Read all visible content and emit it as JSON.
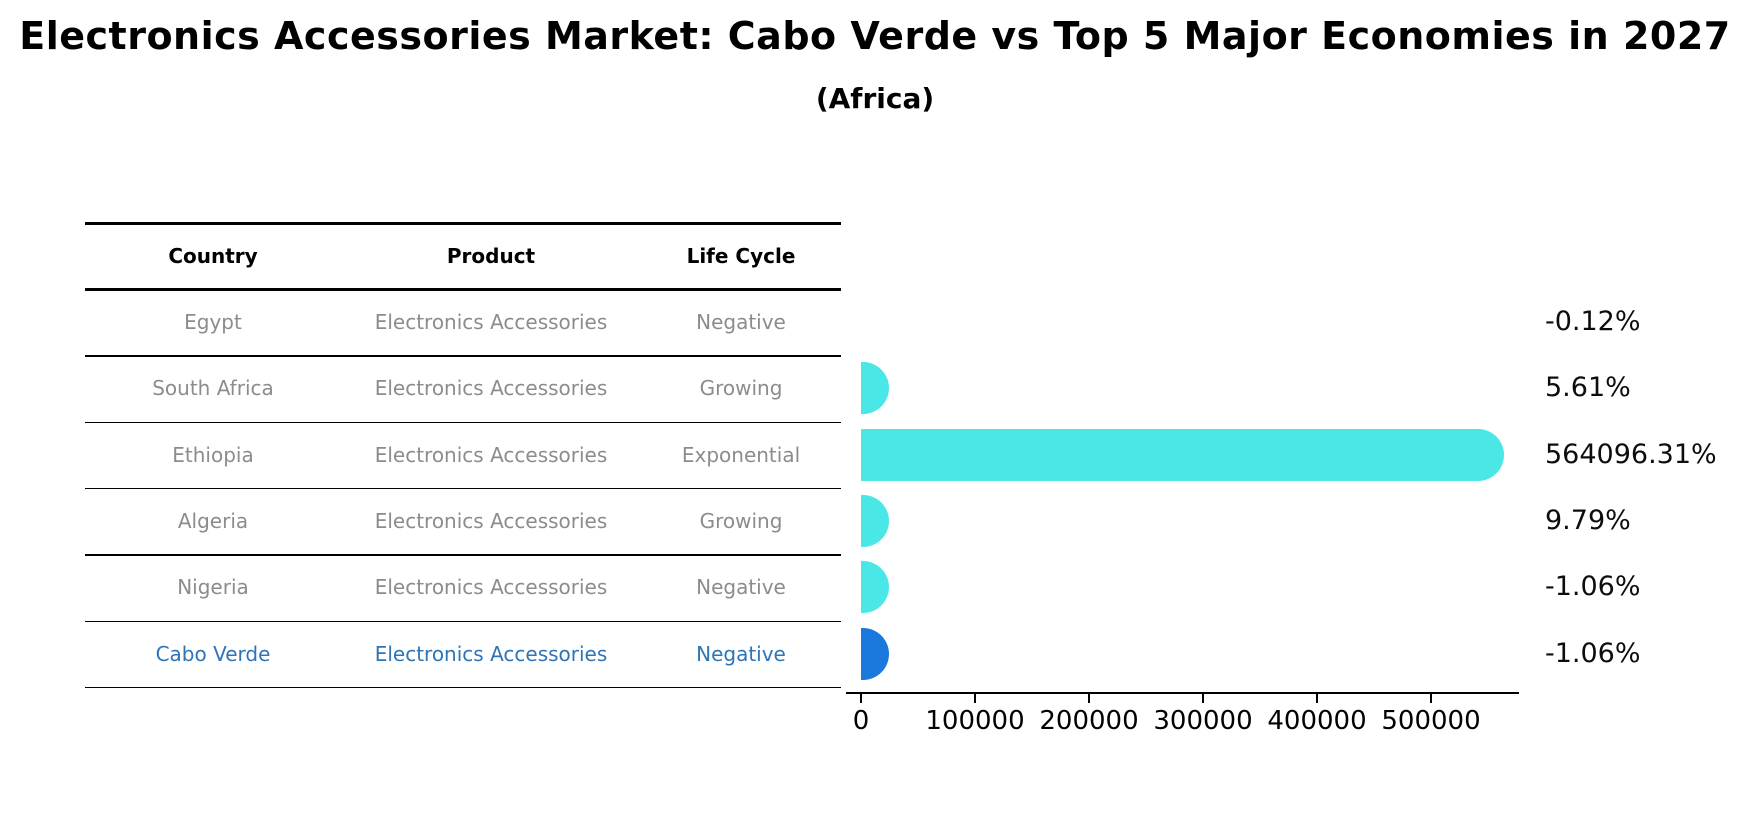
{
  "title": "Electronics Accessories Market: Cabo Verde vs Top 5 Major Economies in 2027",
  "subtitle": "(Africa)",
  "table": {
    "headers": [
      "Country",
      "Product",
      "Life Cycle"
    ],
    "rows": [
      {
        "country": "Egypt",
        "product": "Electronics Accessories",
        "life_cycle": "Negative",
        "highlighted": false
      },
      {
        "country": "South Africa",
        "product": "Electronics Accessories",
        "life_cycle": "Growing",
        "highlighted": false
      },
      {
        "country": "Ethiopia",
        "product": "Electronics Accessories",
        "life_cycle": "Exponential",
        "highlighted": false
      },
      {
        "country": "Algeria",
        "product": "Electronics Accessories",
        "life_cycle": "Growing",
        "highlighted": false
      },
      {
        "country": "Nigeria",
        "product": "Electronics Accessories",
        "life_cycle": "Negative",
        "highlighted": false
      },
      {
        "country": "Cabo Verde",
        "product": "Electronics Accessories",
        "life_cycle": "Negative",
        "highlighted": true
      }
    ]
  },
  "chart_data": {
    "type": "bar",
    "orientation": "horizontal",
    "title": "Electronics Accessories Market: Cabo Verde vs Top 5 Major Economies in 2027",
    "subtitle": "(Africa)",
    "categories": [
      "Egypt",
      "South Africa",
      "Ethiopia",
      "Algeria",
      "Nigeria",
      "Cabo Verde"
    ],
    "values": [
      -0.12,
      5.61,
      564096.31,
      9.79,
      -1.06,
      -1.06
    ],
    "value_labels": [
      "-0.12%",
      "5.61%",
      "564096.31%",
      "9.79%",
      "-1.06%",
      "-1.06%"
    ],
    "bars_visible": [
      false,
      true,
      true,
      true,
      true,
      true
    ],
    "x_ticks": [
      0,
      100000,
      200000,
      300000,
      400000,
      500000
    ],
    "xlim": [
      0,
      575000
    ],
    "grid": false,
    "legend": false,
    "colors": {
      "bar": "#4AE7E7",
      "highlight_bar": "#1B78DC",
      "row_text": "#8C8C8C",
      "highlight_text": "#2E75B6",
      "label_text": "#0d0d0d"
    }
  }
}
